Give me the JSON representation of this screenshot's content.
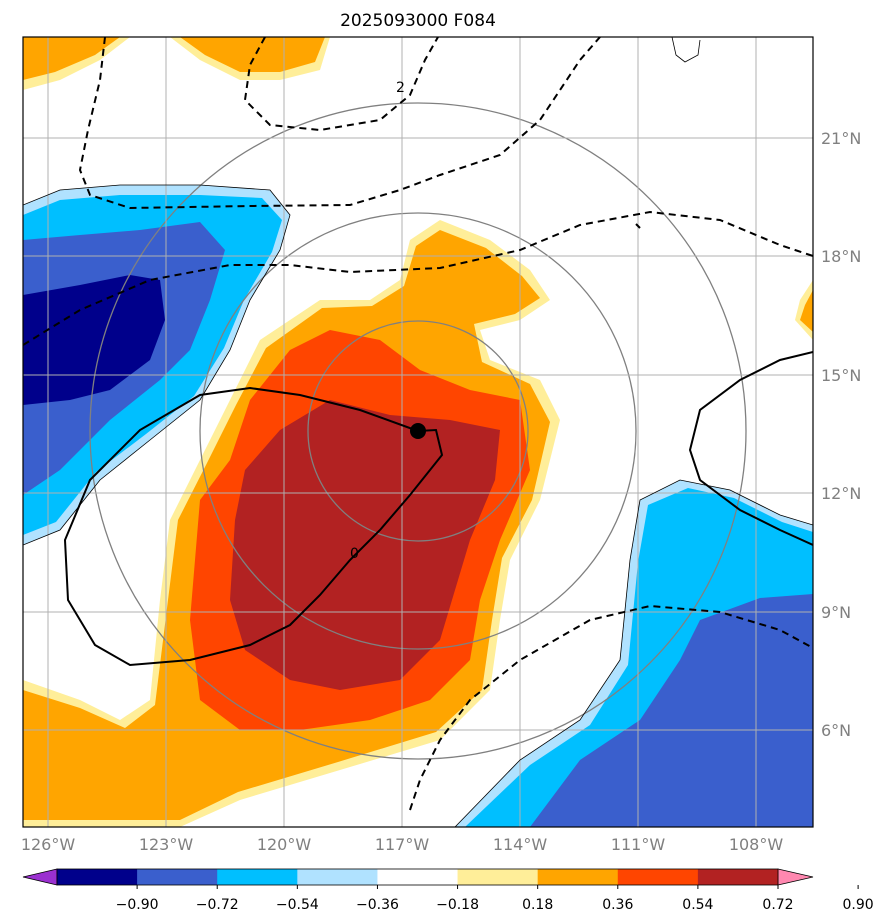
{
  "title": "2025093000 F084",
  "map": {
    "lon_labels": [
      "126°W",
      "123°W",
      "120°W",
      "117°W",
      "114°W",
      "111°W",
      "108°W"
    ],
    "lat_labels": [
      "21°N",
      "18°N",
      "15°N",
      "12°N",
      "9°N",
      "6°N"
    ],
    "contour_labels": [
      "2",
      "0"
    ],
    "storm_center": "117°W 13.5°N"
  },
  "colorbar": {
    "tick_labels": [
      "−0.90",
      "−0.72",
      "−0.54",
      "−0.36",
      "−0.18",
      "0.18",
      "0.36",
      "0.54",
      "0.72",
      "0.90"
    ],
    "colors": [
      "#9b30d0",
      "#00008b",
      "#3a5fcd",
      "#00bfff",
      "#b0e2ff",
      "#ffffff",
      "#ffee99",
      "#ffa500",
      "#ff4500",
      "#b22222",
      "#ff88b0"
    ]
  }
}
